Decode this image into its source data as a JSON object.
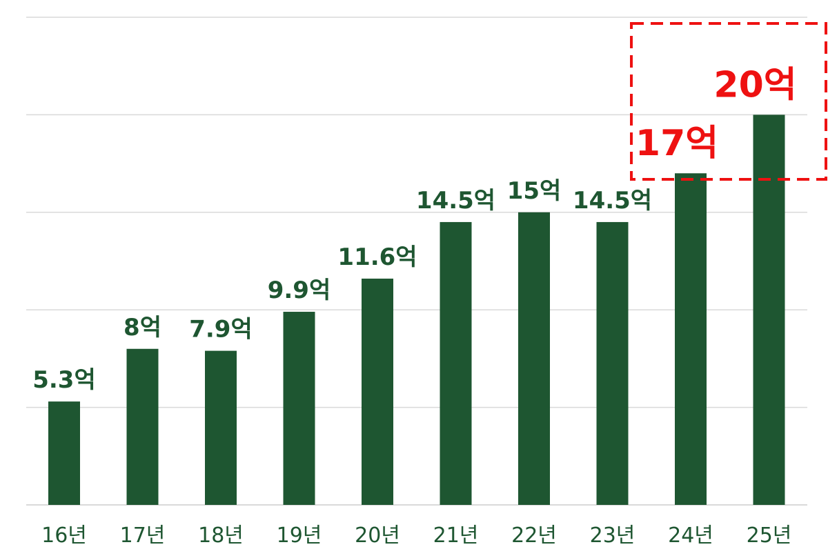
{
  "chart_data": {
    "type": "bar",
    "categories": [
      "16년",
      "17년",
      "18년",
      "19년",
      "20년",
      "21년",
      "22년",
      "23년",
      "24년",
      "25년"
    ],
    "values": [
      5.3,
      8,
      7.9,
      9.9,
      11.6,
      14.5,
      15,
      14.5,
      17,
      20
    ],
    "data_labels": [
      "5.3억",
      "8억",
      "7.9억",
      "9.9억",
      "11.6억",
      "14.5억",
      "15억",
      "14.5억",
      "17억",
      "20억"
    ],
    "highlighted": [
      false,
      false,
      false,
      false,
      false,
      false,
      false,
      false,
      true,
      true
    ],
    "title": "",
    "xlabel": "",
    "ylabel": "",
    "ylim": [
      0,
      25
    ],
    "grid": true,
    "legend": "none",
    "colors": {
      "bar": "#1e5631",
      "label": "#1e5631",
      "highlight": "#ee1111",
      "grid": "#d9d9d9"
    }
  }
}
